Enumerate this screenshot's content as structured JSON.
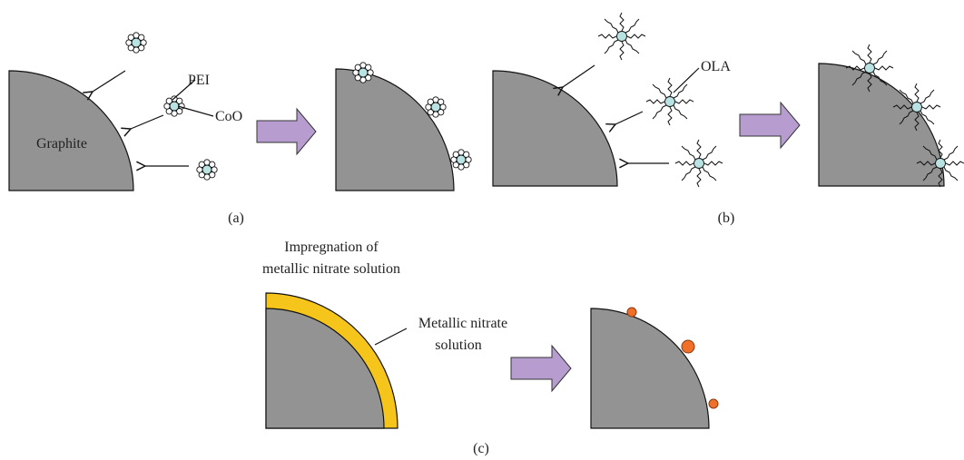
{
  "panel_a": {
    "caption": "(a)",
    "labels": [
      "PEI",
      "CoO",
      "Graphite"
    ]
  },
  "panel_b": {
    "caption": "(b)",
    "labels": [
      "OLA"
    ]
  },
  "panel_c": {
    "caption": "(c)",
    "title": [
      "Impregnation of",
      "metallic nitrate solution"
    ],
    "labels": [
      "Metallic nitrate",
      "solution"
    ]
  }
}
